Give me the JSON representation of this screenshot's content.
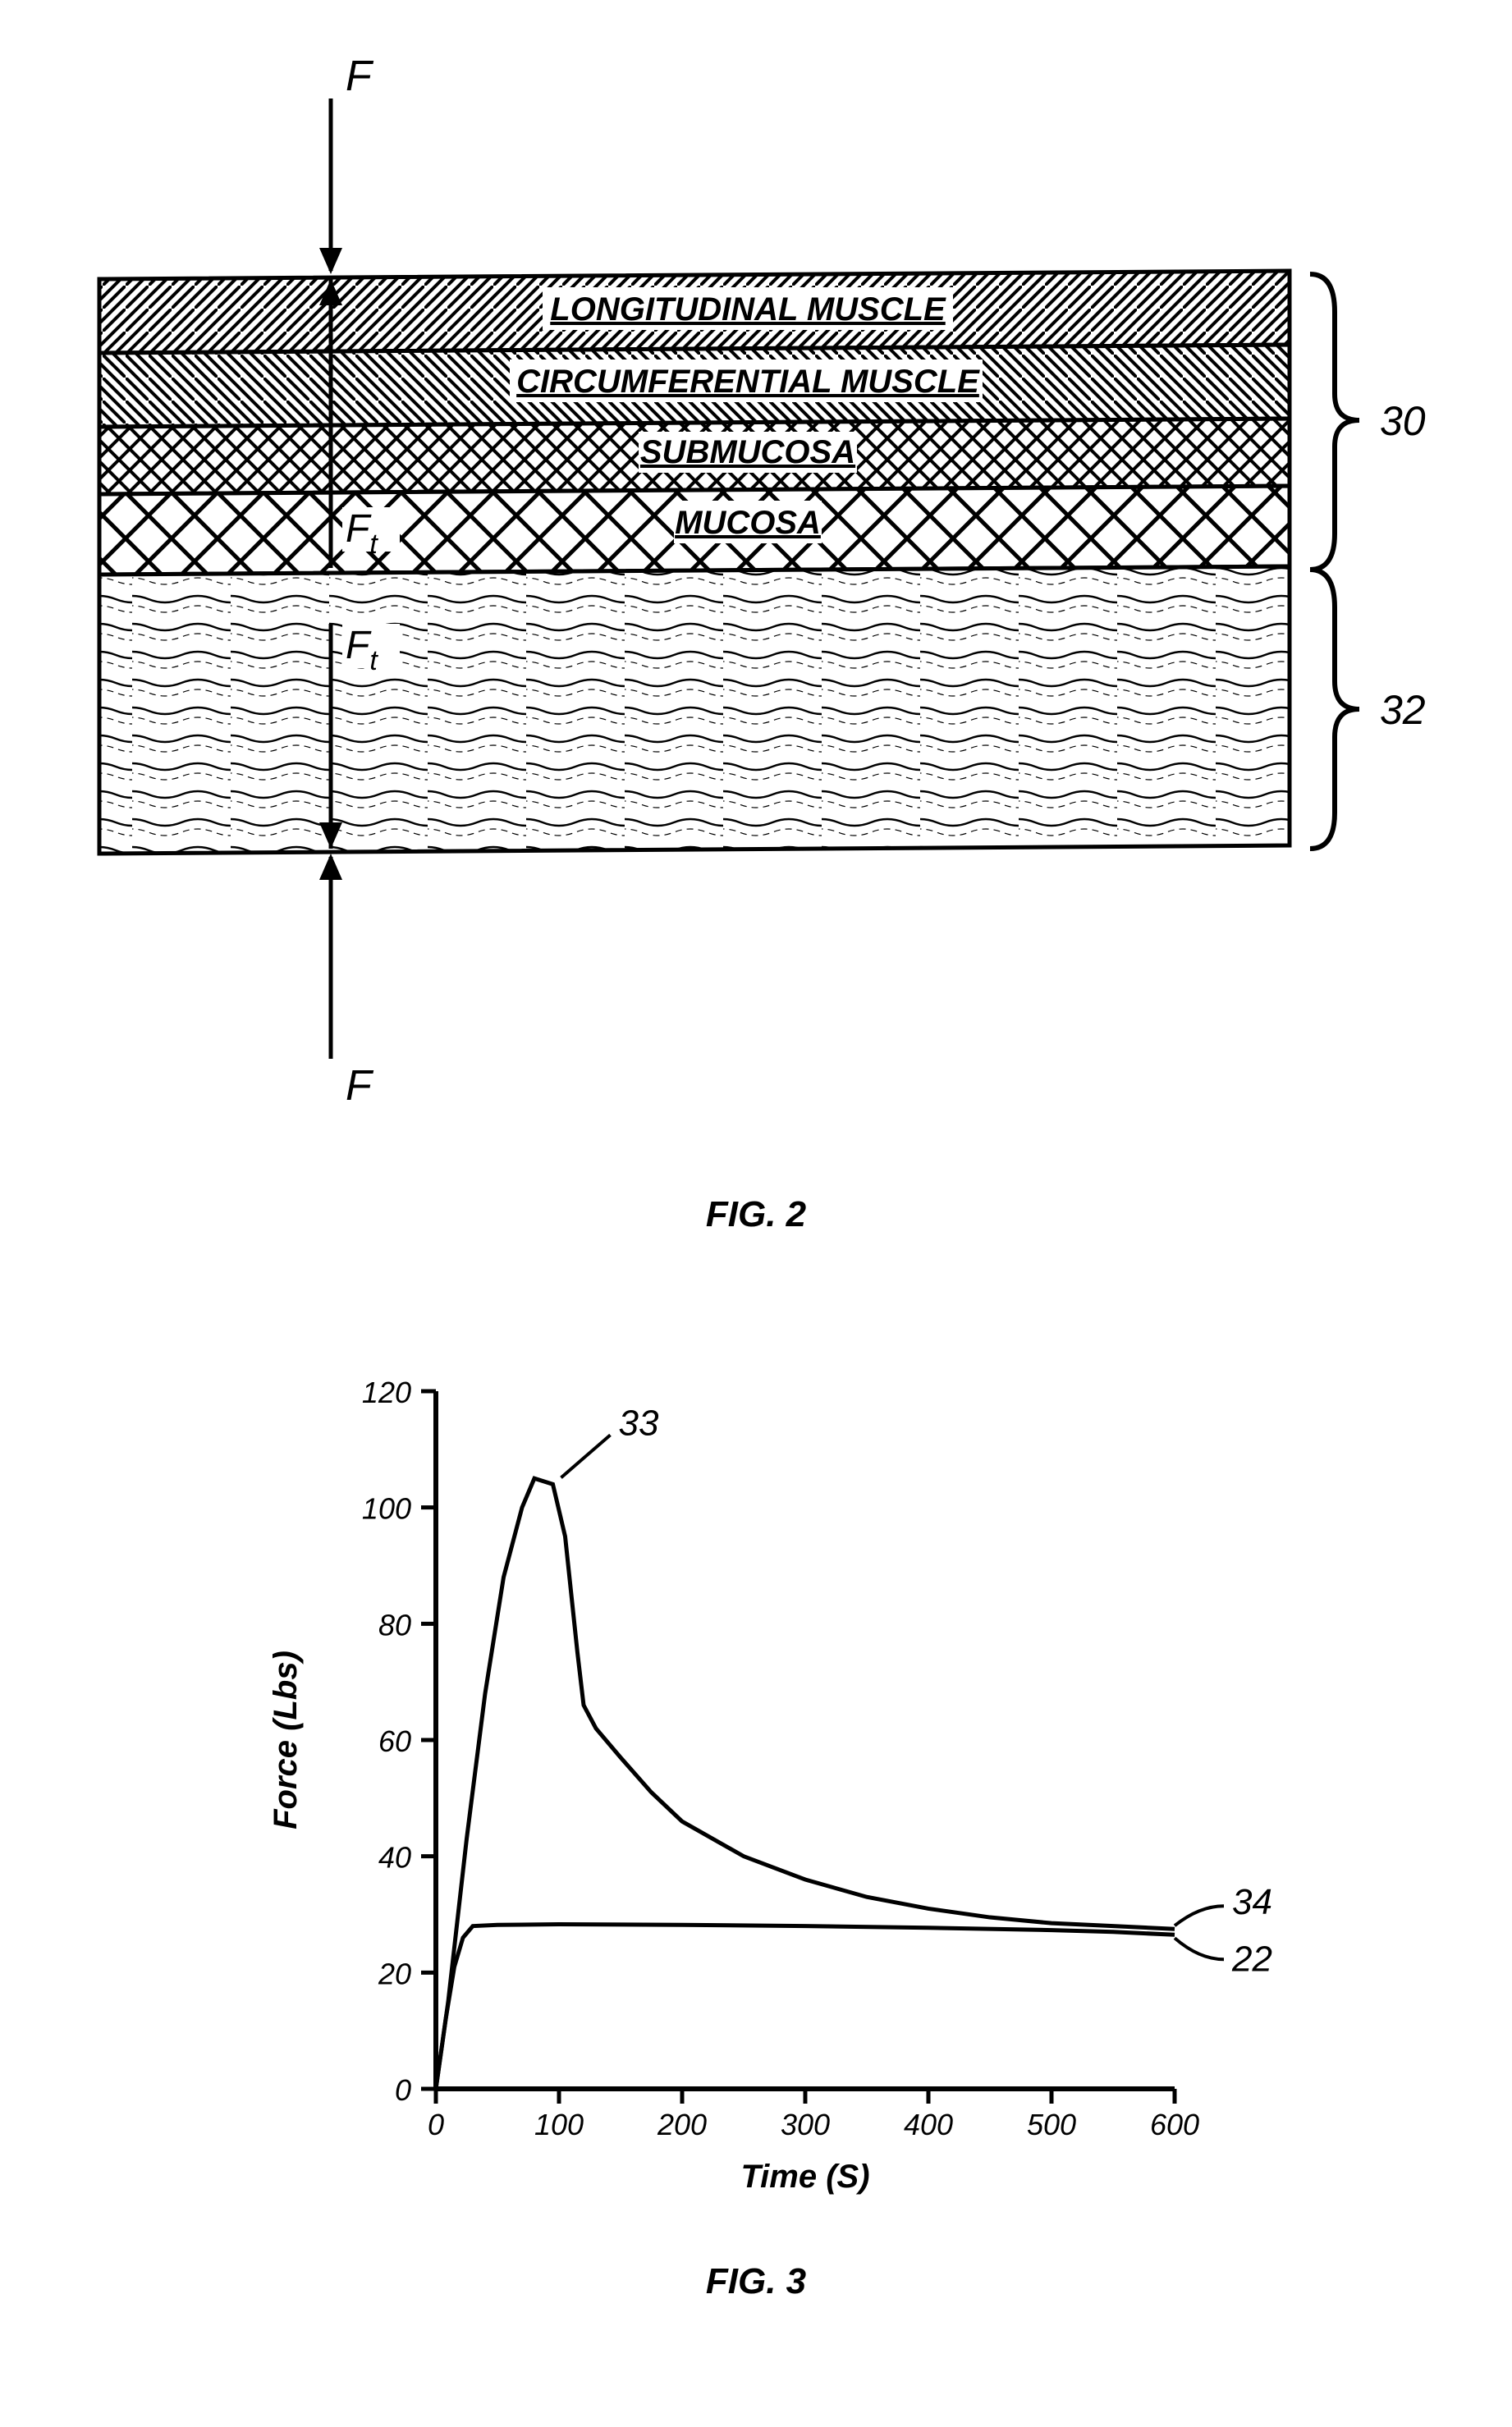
{
  "fig2": {
    "caption": "FIG. 2",
    "force_top": "F",
    "force_bottom": "F",
    "ft_upper": "F",
    "ft_upper_sub": "t",
    "ft_lower": "F",
    "ft_lower_sub": "t",
    "ref30": "30",
    "ref32": "32",
    "layers": [
      {
        "label": "LONGITUDINAL MUSCLE"
      },
      {
        "label": "CIRCUMFERENTIAL MUSCLE"
      },
      {
        "label": "SUBMUCOSA"
      },
      {
        "label": "MUCOSA"
      }
    ],
    "stroke": "#000000",
    "background": "#ffffff"
  },
  "fig3": {
    "caption": "FIG. 3",
    "type": "line",
    "xlabel": "Time (S)",
    "ylabel": "Force (Lbs)",
    "xlim": [
      0,
      600
    ],
    "ylim": [
      0,
      120
    ],
    "xticks": [
      0,
      100,
      200,
      300,
      400,
      500,
      600
    ],
    "yticks": [
      0,
      20,
      40,
      60,
      80,
      100,
      120
    ],
    "label_fontsize": 40,
    "tick_fontsize": 36,
    "stroke": "#000000",
    "background": "#ffffff",
    "ref33": "33",
    "ref34": "34",
    "ref22": "22",
    "series": [
      {
        "name": "curve33",
        "points": [
          [
            0,
            0
          ],
          [
            10,
            15
          ],
          [
            25,
            43
          ],
          [
            40,
            68
          ],
          [
            55,
            88
          ],
          [
            70,
            100
          ],
          [
            80,
            105
          ],
          [
            95,
            104
          ],
          [
            105,
            95
          ],
          [
            115,
            75
          ],
          [
            120,
            66
          ],
          [
            130,
            62
          ],
          [
            150,
            57
          ],
          [
            175,
            51
          ],
          [
            200,
            46
          ],
          [
            250,
            40
          ],
          [
            300,
            36
          ],
          [
            350,
            33
          ],
          [
            400,
            31
          ],
          [
            450,
            29.5
          ],
          [
            500,
            28.5
          ],
          [
            550,
            28
          ],
          [
            600,
            27.5
          ]
        ]
      },
      {
        "name": "curve34",
        "points": [
          [
            0,
            0
          ],
          [
            8,
            12
          ],
          [
            15,
            21
          ],
          [
            22,
            26
          ],
          [
            30,
            28
          ],
          [
            50,
            28.2
          ],
          [
            100,
            28.3
          ],
          [
            200,
            28.2
          ],
          [
            300,
            28
          ],
          [
            400,
            27.7
          ],
          [
            500,
            27.3
          ],
          [
            550,
            27
          ],
          [
            600,
            26.5
          ]
        ]
      }
    ]
  }
}
